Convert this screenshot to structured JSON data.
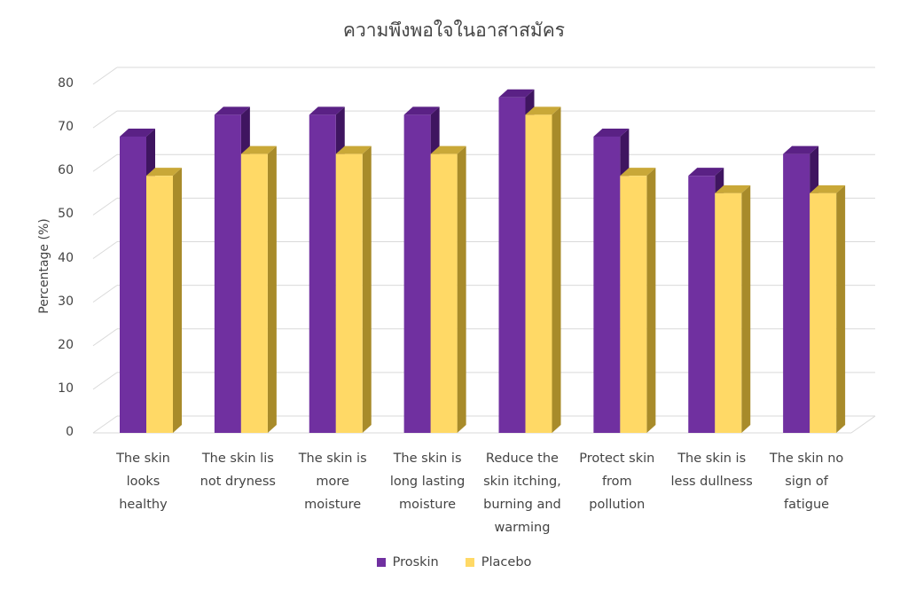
{
  "chart_data": {
    "type": "bar",
    "title": "ความพึงพอใจในอาสาสมัคร",
    "xlabel": "",
    "ylabel": "Percentage (%)",
    "ylim": [
      0,
      80
    ],
    "yticks": [
      0,
      10,
      20,
      30,
      40,
      50,
      60,
      70,
      80
    ],
    "categories": [
      "The skin\nlooks\nhealthy",
      "The skin lis\nnot dryness",
      "The skin is\nmore\nmoisture",
      "The  skin is\nlong lasting\nmoisture",
      "Reduce the\nskin itching,\nburning and\nwarming",
      "Protect skin\nfrom\npollution",
      "The skin is\nless dullness",
      "The skin no\nsign of\nfatigue"
    ],
    "series": [
      {
        "name": "Proskin",
        "values": [
          68,
          73,
          73,
          73,
          77,
          68,
          59,
          64
        ]
      },
      {
        "name": "Placebo",
        "values": [
          59,
          64,
          64,
          64,
          73,
          59,
          55,
          55
        ]
      }
    ],
    "grid": true,
    "legend": "bottom-center"
  },
  "colors": {
    "proskin_front": "#7030A0",
    "proskin_top": "#5A2185",
    "proskin_side": "#3F1560",
    "placebo_front": "#FFD966",
    "placebo_top": "#C9A838",
    "placebo_side": "#A88B2A",
    "grid": "#D9D9D9"
  }
}
